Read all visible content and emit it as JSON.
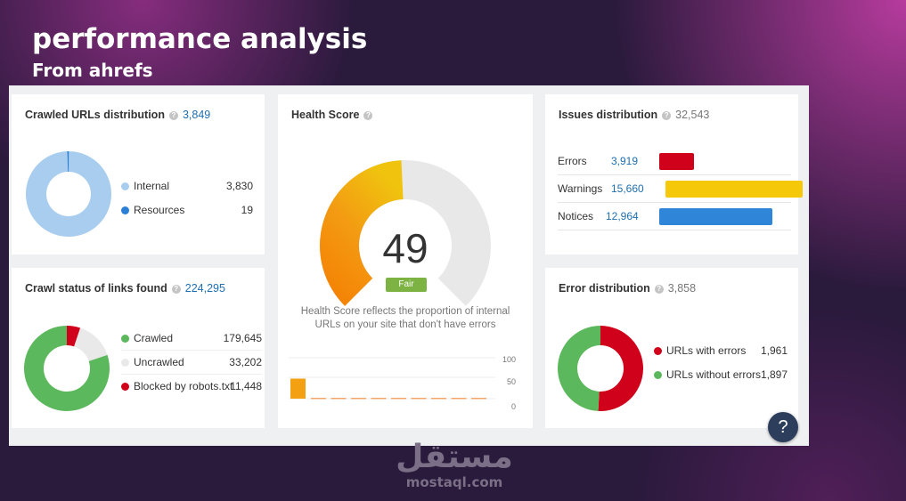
{
  "slide": {
    "title": "performance analysis",
    "subtitle": "From ahrefs"
  },
  "colors": {
    "blue_light": "#a9cdee",
    "blue_dark": "#2b7fd4",
    "green": "#5cb85c",
    "gray": "#e9e9e9",
    "red": "#d0021b",
    "yellow": "#f5c80a",
    "notice_blue": "#2f86d9"
  },
  "crawled_urls": {
    "title": "Crawled URLs distribution",
    "count": "3,849",
    "items": [
      {
        "label": "Internal",
        "value": "3,830",
        "raw": 3830,
        "color": "#a9cdee"
      },
      {
        "label": "Resources",
        "value": "19",
        "raw": 19,
        "color": "#2b7fd4"
      }
    ]
  },
  "crawl_status": {
    "title": "Crawl status of links found",
    "count": "224,295",
    "items": [
      {
        "label": "Crawled",
        "value": "179,645",
        "raw": 179645,
        "color": "#5cb85c"
      },
      {
        "label": "Uncrawled",
        "value": "33,202",
        "raw": 33202,
        "color": "#e9e9e9"
      },
      {
        "label": "Blocked by robots.txt",
        "value": "11,448",
        "raw": 11448,
        "color": "#d0021b"
      }
    ]
  },
  "health_score": {
    "title": "Health Score",
    "score": "49",
    "score_raw": 49,
    "rating": "Fair",
    "description": "Health Score reflects the proportion of internal URLs on your site that don't have errors",
    "history_axis": [
      "100",
      "50",
      "0"
    ]
  },
  "issues": {
    "title": "Issues distribution",
    "count": "32,543",
    "items": [
      {
        "label": "Errors",
        "value": "3,919",
        "raw": 3919,
        "color": "#d0021b"
      },
      {
        "label": "Warnings",
        "value": "15,660",
        "raw": 15660,
        "color": "#f5c80a"
      },
      {
        "label": "Notices",
        "value": "12,964",
        "raw": 12964,
        "color": "#2f86d9"
      }
    ]
  },
  "error_distribution": {
    "title": "Error distribution",
    "count": "3,858",
    "items": [
      {
        "label": "URLs with errors",
        "value": "1,961",
        "raw": 1961,
        "color": "#d0021b"
      },
      {
        "label": "URLs without errors",
        "value": "1,897",
        "raw": 1897,
        "color": "#5cb85c"
      }
    ]
  },
  "help_button": {
    "label": "?"
  },
  "watermark": {
    "arabic": "مستقل",
    "latin": "mostaql.com"
  }
}
